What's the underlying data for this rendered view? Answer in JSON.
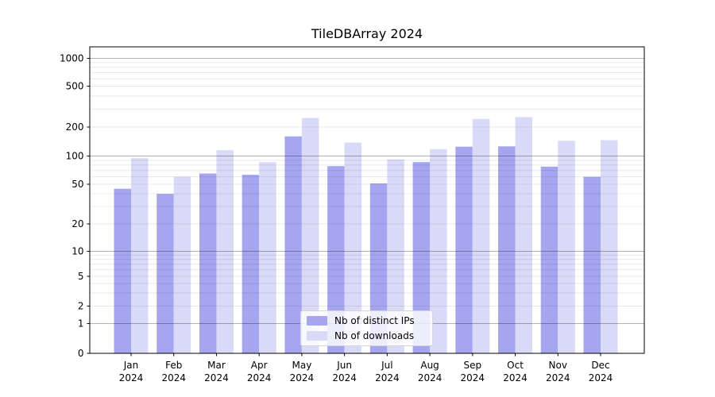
{
  "chart_data": {
    "type": "bar",
    "title": "TileDBArray 2024",
    "x_months": [
      "Jan",
      "Feb",
      "Mar",
      "Apr",
      "May",
      "Jun",
      "Jul",
      "Aug",
      "Sep",
      "Oct",
      "Nov",
      "Dec"
    ],
    "x_year": "2024",
    "categories": [
      "Jan 2024",
      "Feb 2024",
      "Mar 2024",
      "Apr 2024",
      "May 2024",
      "Jun 2024",
      "Jul 2024",
      "Aug 2024",
      "Sep 2024",
      "Oct 2024",
      "Nov 2024",
      "Dec 2024"
    ],
    "series": [
      {
        "name": "Nb of distinct IPs",
        "color": "#a5a5f0",
        "values": [
          45,
          40,
          65,
          63,
          160,
          78,
          51,
          86,
          125,
          126,
          77,
          60
        ]
      },
      {
        "name": "Nb of downloads",
        "color": "#d9d9f8",
        "values": [
          95,
          60,
          115,
          86,
          245,
          138,
          92,
          118,
          240,
          250,
          144,
          146
        ]
      }
    ],
    "ylabel": "",
    "xlabel": "",
    "yscale": "symlog",
    "y_ticks": [
      1000,
      500,
      200,
      100,
      50,
      20,
      10,
      5,
      2,
      1,
      0
    ],
    "ylim": [
      0,
      1400
    ],
    "grid": "horizontal major+minor, drawn over bars",
    "legend_position": "lower center",
    "colors": {
      "bar_dark": "#a5a5f0",
      "bar_light": "#d9d9f8",
      "grid_major": "#b2b2b2",
      "grid_minor": "#e8e8e8",
      "axis": "#000000",
      "legend_border": "#d5d5d5"
    }
  }
}
